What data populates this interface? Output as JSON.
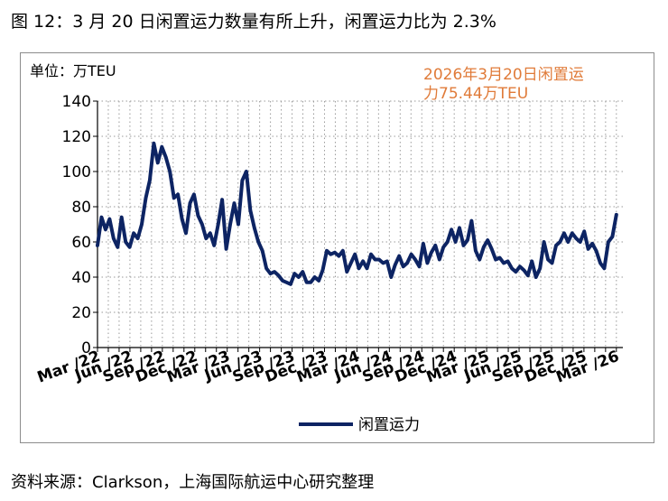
{
  "figure_title": "图 12：3 月 20 日闲置运力数量有所上升，闲置运力比为 2.3%",
  "source": "资料来源：Clarkson，上海国际航运中心研究整理",
  "chart_data": {
    "type": "line",
    "unit_label": "单位：万TEU",
    "annotation_line1": "2026年3月20日闲置运",
    "annotation_line2": "力75.44万TEU",
    "annotation_color": "#E07B39",
    "line_color": "#0D2463",
    "ylim": [
      0,
      140
    ],
    "yticks": [
      0,
      20,
      40,
      60,
      80,
      100,
      120,
      140
    ],
    "grid": "dotted vertical and horizontal",
    "legend_position": "bottom-center",
    "xtick_labels": [
      "Mar /22",
      "Jun /22",
      "Sep /22",
      "Dec /22",
      "Mar /23",
      "Jun /23",
      "Sep /23",
      "Dec /23",
      "Mar /24",
      "Jun /24",
      "Sep /24",
      "Dec /24",
      "Mar /25",
      "Jun /25",
      "Sep /25",
      "Dec /25",
      "Mar /26"
    ],
    "series": [
      {
        "name": "闲置运力",
        "values": [
          58,
          74,
          67,
          73,
          62,
          57,
          74,
          60,
          57,
          65,
          62,
          70,
          85,
          95,
          116,
          105,
          114,
          108,
          100,
          85,
          87,
          73,
          65,
          82,
          87,
          75,
          70,
          62,
          65,
          58,
          70,
          84,
          56,
          70,
          82,
          70,
          95,
          100,
          78,
          68,
          60,
          55,
          45,
          42,
          43,
          41,
          38,
          37,
          36,
          42,
          40,
          43,
          37,
          37,
          40,
          38,
          44,
          55,
          53,
          54,
          52,
          55,
          43,
          48,
          53,
          45,
          49,
          45,
          53,
          50,
          50,
          48,
          49,
          40,
          47,
          52,
          46,
          48,
          53,
          50,
          46,
          59,
          48,
          54,
          58,
          50,
          57,
          60,
          67,
          60,
          68,
          58,
          61,
          72,
          55,
          50,
          57,
          61,
          56,
          50,
          51,
          48,
          49,
          45,
          43,
          46,
          44,
          41,
          49,
          40,
          45,
          60,
          50,
          48,
          58,
          60,
          65,
          60,
          65,
          62,
          60,
          66,
          56,
          59,
          55,
          48,
          45,
          60,
          63,
          75.44
        ]
      }
    ]
  }
}
